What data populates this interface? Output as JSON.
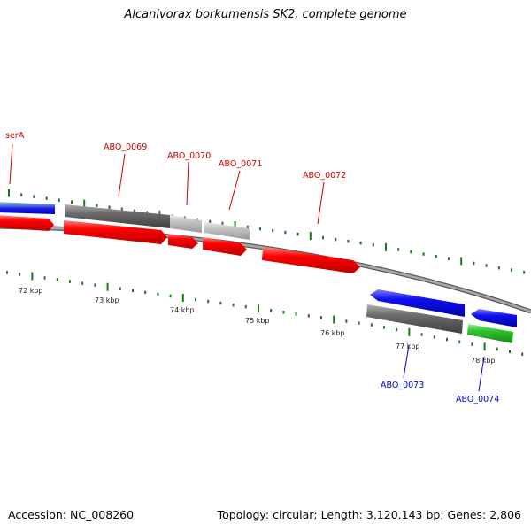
{
  "title": "Alcanivorax borkumensis SK2, complete genome",
  "footer": {
    "accession": "Accession: NC_008260",
    "topology": "Topology: circular; Length: 3,120,143 bp; Genes: 2,806"
  },
  "colors": {
    "forward_label": "#cc0000",
    "reverse_label": "#0000cc",
    "backbone": "#8a8a8a",
    "tick": "#1a7a1a",
    "cds_red": "#ee0000",
    "cds_blue": "#1a1aee",
    "cds_green": "#22bb22",
    "cds_darkgray": "#707070",
    "cds_lightgray": "#bdbdbd"
  },
  "scale": {
    "labels": [
      {
        "kbp": 72,
        "text": "72 kbp"
      },
      {
        "kbp": 73,
        "text": "73 kbp"
      },
      {
        "kbp": 74,
        "text": "74 kbp"
      },
      {
        "kbp": 75,
        "text": "75 kbp"
      },
      {
        "kbp": 76,
        "text": "76 kbp"
      },
      {
        "kbp": 77,
        "text": "77 kbp"
      },
      {
        "kbp": 78,
        "text": "78 kbp"
      }
    ]
  },
  "gene_labels": {
    "serA": "serA",
    "abo0069": "ABO_0069",
    "abo0070": "ABO_0070",
    "abo0071": "ABO_0071",
    "abo0072": "ABO_0072",
    "abo0073": "ABO_0073",
    "abo0074": "ABO_0074"
  }
}
